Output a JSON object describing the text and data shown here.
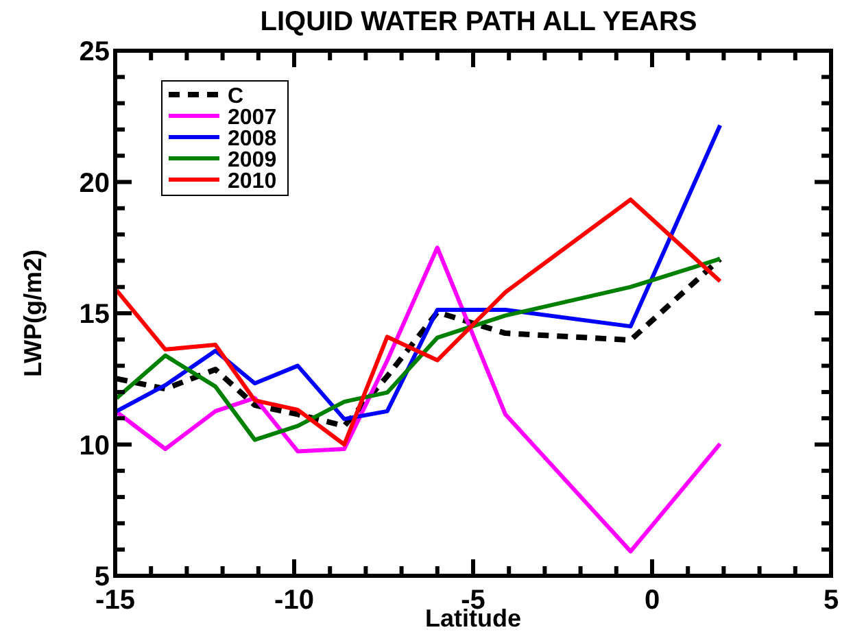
{
  "chart_data": {
    "type": "line",
    "title": "LIQUID WATER PATH ALL YEARS",
    "xlabel": "Latitude",
    "ylabel": "LWP(g/m2)",
    "x": [
      -14.96,
      -13.6,
      -12.2,
      -11.1,
      -9.9,
      -8.6,
      -7.4,
      -6.0,
      -4.1,
      -0.6,
      1.9
    ],
    "xlim": [
      -15,
      5
    ],
    "xticks": [
      -15,
      {
        "value": -14,
        "label": null
      },
      {
        "value": -13,
        "label": null
      },
      {
        "value": -12,
        "label": null
      },
      {
        "value": -11,
        "label": null
      },
      -10,
      {
        "value": -9,
        "label": null
      },
      {
        "value": -8,
        "label": null
      },
      {
        "value": -7,
        "label": null
      },
      {
        "value": -6,
        "label": null
      },
      -5,
      {
        "value": -4,
        "label": null
      },
      {
        "value": -3,
        "label": null
      },
      {
        "value": -2,
        "label": null
      },
      {
        "value": -1,
        "label": null
      },
      0,
      {
        "value": 1,
        "label": null
      },
      {
        "value": 2,
        "label": null
      },
      {
        "value": 3,
        "label": null
      },
      {
        "value": 4,
        "label": null
      },
      5
    ],
    "ylim": [
      5,
      25
    ],
    "yticks": [
      5,
      {
        "value": 6,
        "label": null
      },
      {
        "value": 7,
        "label": null
      },
      {
        "value": 8,
        "label": null
      },
      {
        "value": 9,
        "label": null
      },
      10,
      {
        "value": 11,
        "label": null
      },
      {
        "value": 12,
        "label": null
      },
      {
        "value": 13,
        "label": null
      },
      {
        "value": 14,
        "label": null
      },
      15,
      {
        "value": 16,
        "label": null
      },
      {
        "value": 17,
        "label": null
      },
      {
        "value": 18,
        "label": null
      },
      {
        "value": 19,
        "label": null
      },
      20,
      {
        "value": 21,
        "label": null
      },
      {
        "value": 22,
        "label": null
      },
      {
        "value": 23,
        "label": null
      },
      {
        "value": 24,
        "label": null
      },
      25
    ],
    "grid": false,
    "legend": "top left",
    "marker": "none",
    "series": [
      {
        "name": "C",
        "color": "#000000",
        "line_style": "dashed",
        "values": [
          12.51,
          12.12,
          12.86,
          11.5,
          11.15,
          10.71,
          12.6,
          15.04,
          14.24,
          13.98,
          17.07
        ]
      },
      {
        "name": "2007",
        "color": "#ff00ff",
        "values": [
          11.24,
          9.83,
          11.27,
          11.77,
          9.74,
          9.83,
          13.2,
          17.5,
          11.15,
          5.93,
          10.03
        ]
      },
      {
        "name": "2008",
        "color": "#0000ff",
        "values": [
          11.27,
          12.26,
          13.57,
          12.33,
          13.0,
          10.97,
          11.27,
          15.13,
          15.13,
          14.5,
          22.16
        ]
      },
      {
        "name": "2009",
        "color": "#008000",
        "values": [
          11.77,
          13.39,
          12.21,
          10.18,
          10.71,
          11.63,
          11.98,
          14.07,
          14.91,
          16.0,
          17.07
        ]
      },
      {
        "name": "2010",
        "color": "#ff0000",
        "values": [
          15.87,
          13.62,
          13.8,
          11.68,
          11.32,
          10.0,
          14.1,
          13.21,
          15.8,
          19.33,
          16.22
        ]
      }
    ]
  }
}
